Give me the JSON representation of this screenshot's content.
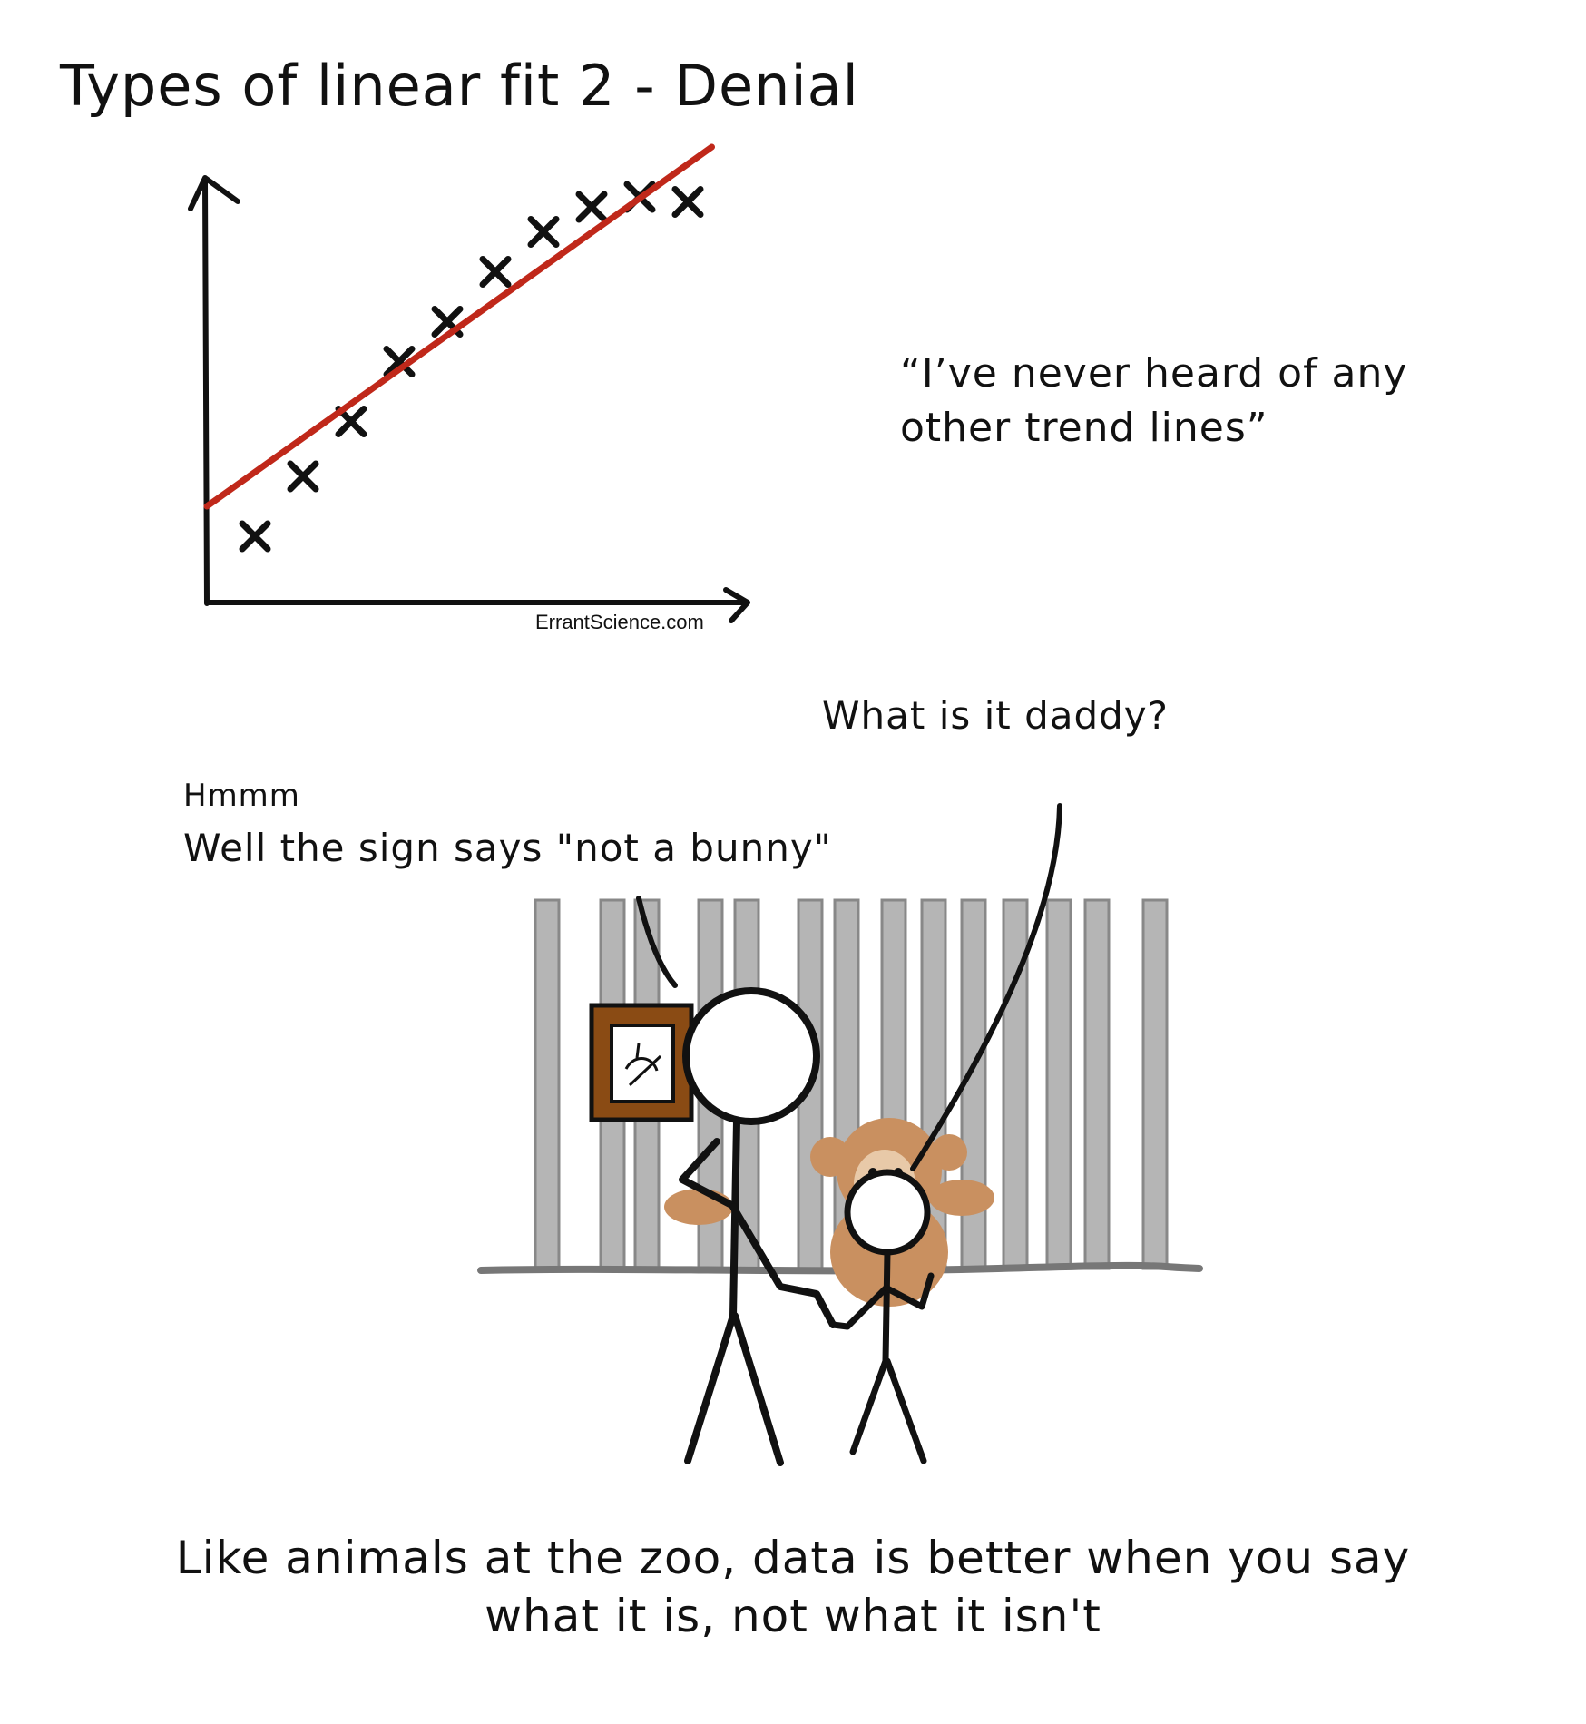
{
  "title": "Types of linear fit 2 - Denial",
  "quote": {
    "line1": "“I’ve never heard of any",
    "line2": "other trend lines”"
  },
  "credit": "ErrantScience.com",
  "child_speech": "What is it daddy?",
  "dad_speech": {
    "line1": "Hmmm",
    "line2": "Well the sign says \"not a bunny\""
  },
  "caption": {
    "line1": "Like animals at the zoo, data is better when you say",
    "line2": "what it is, not what it isn't"
  },
  "chart_data": {
    "type": "scatter",
    "title": "Types of linear fit 2 - Denial",
    "xlabel": "",
    "ylabel": "",
    "x": [
      1,
      2,
      3,
      4,
      5,
      6,
      7,
      8,
      9,
      10
    ],
    "y": [
      1.0,
      2.2,
      3.3,
      4.5,
      5.3,
      6.3,
      7.1,
      7.6,
      7.8,
      7.7
    ],
    "fit_line": {
      "x": [
        0,
        10.5
      ],
      "y": [
        1.6,
        8.8
      ]
    },
    "marker": "x",
    "colors": {
      "points": "#111111",
      "fit": "#c0281a"
    }
  },
  "colors": {
    "bars": "#b5b5b5",
    "monkey": "#c99060",
    "sign_frame": "#8a4b14"
  }
}
